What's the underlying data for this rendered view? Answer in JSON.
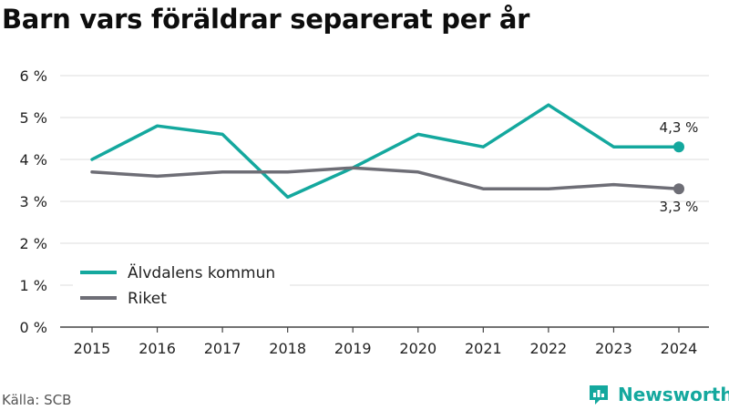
{
  "title": "Barn vars föräldrar separerat per år",
  "source": "Källa: SCB",
  "brand": {
    "name": "Newsworthy",
    "color": "#14a89e",
    "icon": "newsworthy-logo-icon"
  },
  "colors": {
    "teal": "#14a89e",
    "grey": "#6e6e76",
    "grid": "#dddddd"
  },
  "chart_data": {
    "type": "line",
    "title": "Barn vars föräldrar separerat per år",
    "x": [
      "2015",
      "2016",
      "2017",
      "2018",
      "2019",
      "2020",
      "2021",
      "2022",
      "2023",
      "2024"
    ],
    "ytick_labels": [
      "0 %",
      "1 %",
      "2 %",
      "3 %",
      "4 %",
      "5 %",
      "6 %"
    ],
    "ylim": [
      0,
      6
    ],
    "grid": true,
    "legend_placement": "bottom-left",
    "series": [
      {
        "name": "Älvdalens kommun",
        "color": "#14a89e",
        "values": [
          4.0,
          4.8,
          4.6,
          3.1,
          3.8,
          4.6,
          4.3,
          5.3,
          4.3,
          4.3
        ],
        "end_label": "4,3 %"
      },
      {
        "name": "Riket",
        "color": "#6e6e76",
        "values": [
          3.7,
          3.6,
          3.7,
          3.7,
          3.8,
          3.7,
          3.3,
          3.3,
          3.4,
          3.3
        ],
        "end_label": "3,3 %"
      }
    ]
  }
}
